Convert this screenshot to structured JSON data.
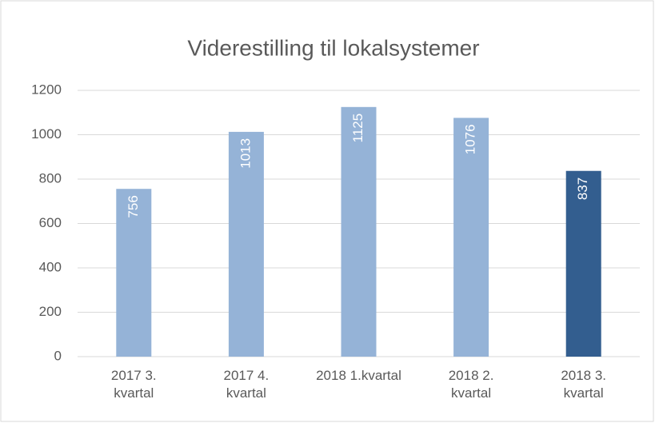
{
  "chart_data": {
    "type": "bar",
    "title": "Viderestilling til lokalsystemer",
    "categories": [
      "2017 3. kvartal",
      "2017 4. kvartal",
      "2018 1.kvartal",
      "2018 2. kvartal",
      "2018 3. kvartal"
    ],
    "values": [
      756,
      1013,
      1125,
      1076,
      837
    ],
    "colors": [
      "#95b3d7",
      "#95b3d7",
      "#95b3d7",
      "#95b3d7",
      "#335e8f"
    ],
    "ylim": [
      0,
      1200
    ],
    "yticks": [
      0,
      200,
      400,
      600,
      800,
      1000,
      1200
    ],
    "grid": true
  }
}
